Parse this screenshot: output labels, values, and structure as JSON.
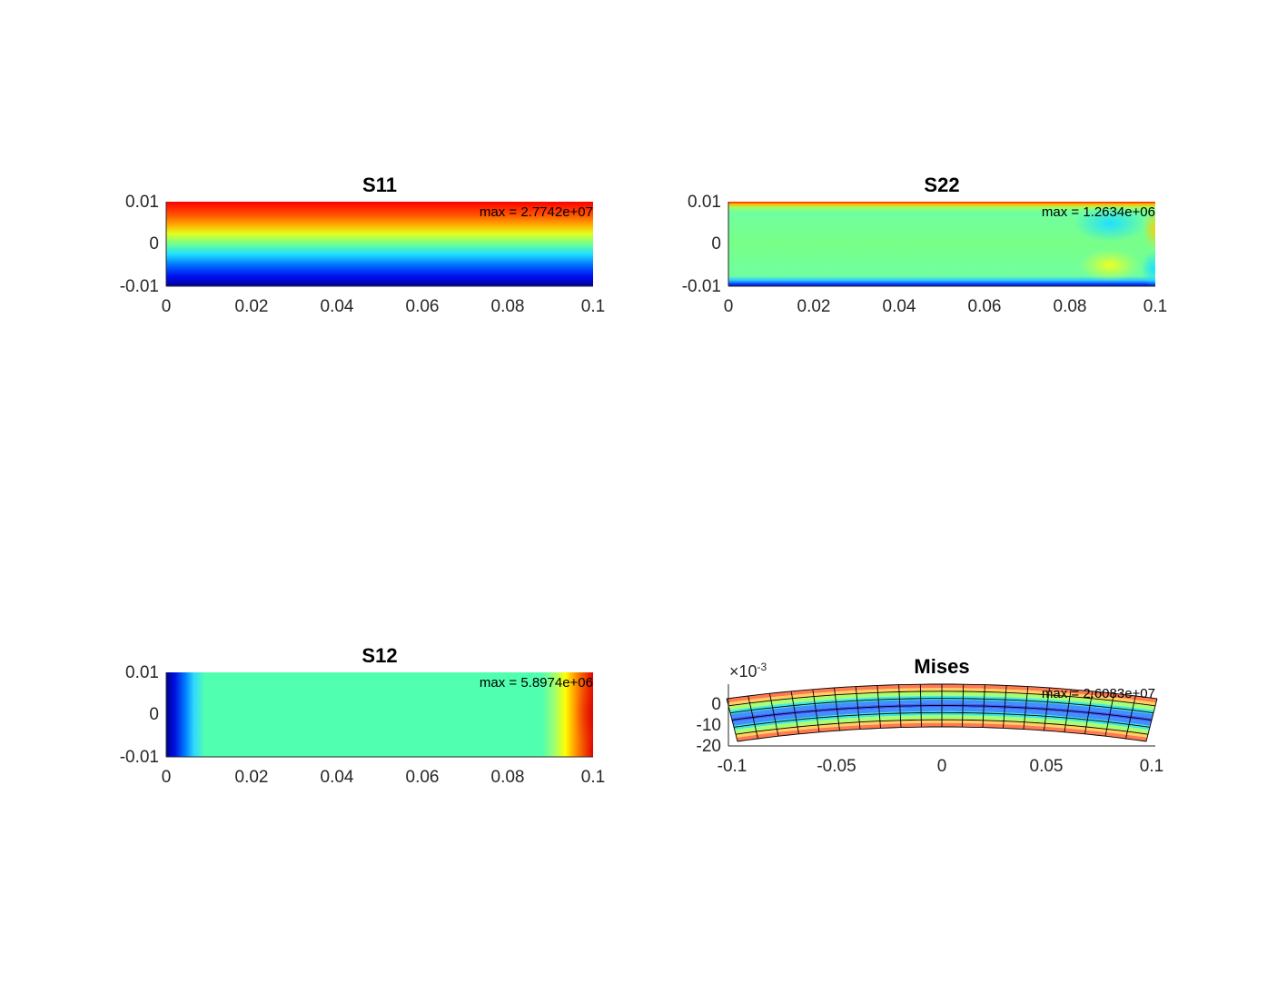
{
  "chart_data": [
    {
      "type": "heatmap",
      "title": "S11",
      "annotation": "max = 2.7742e+07",
      "xlim": [
        0,
        0.1
      ],
      "ylim": [
        -0.01,
        0.01
      ],
      "xticks": [
        "0",
        "0.02",
        "0.04",
        "0.06",
        "0.08",
        "0.1"
      ],
      "yticks": [
        "0.01",
        "0",
        "-0.01"
      ],
      "colormap": "jet",
      "field": "linear gradient in y: red at top, green at middle, blue at bottom"
    },
    {
      "type": "heatmap",
      "title": "S22",
      "annotation": "max = 1.2634e+06",
      "xlim": [
        0,
        0.1
      ],
      "ylim": [
        -0.01,
        0.01
      ],
      "xticks": [
        "0",
        "0.02",
        "0.04",
        "0.06",
        "0.08",
        "0.1"
      ],
      "yticks": [
        "0.01",
        "0",
        "-0.01"
      ],
      "colormap": "jet",
      "field": "mostly green; red band along top edge, blue band along bottom edge; cyan spot near x=0.09 y=0.005, yellow spot near x=0.09 y=-0.005"
    },
    {
      "type": "heatmap",
      "title": "S12",
      "annotation": "max = 5.8974e+06",
      "xlim": [
        0,
        0.1
      ],
      "ylim": [
        -0.01,
        0.01
      ],
      "xticks": [
        "0",
        "0.02",
        "0.04",
        "0.06",
        "0.08",
        "0.1"
      ],
      "yticks": [
        "0.01",
        "0",
        "-0.01"
      ],
      "colormap": "jet",
      "field": "blue at left edge (x<0.01), green interior, yellow-to-red at right edge (x>0.09)"
    },
    {
      "type": "heatmap",
      "title": "Mises",
      "annotation": "max = 2.6083e+07",
      "xlim": [
        -0.1,
        0.1
      ],
      "ylim": [
        -20,
        10
      ],
      "y_exponent": "-3",
      "xticks": [
        "-0.1",
        "-0.05",
        "0",
        "0.05",
        "0.1"
      ],
      "yticks": [
        "0",
        "-10",
        "-20"
      ],
      "colormap": "jet",
      "field": "deformed curved beam with mesh grid; color bands symmetric about neutral axis: blue at center, cyan, green, yellow, orange-red at top and bottom edges",
      "mesh": {
        "columns": 20,
        "rows": 6
      }
    }
  ]
}
